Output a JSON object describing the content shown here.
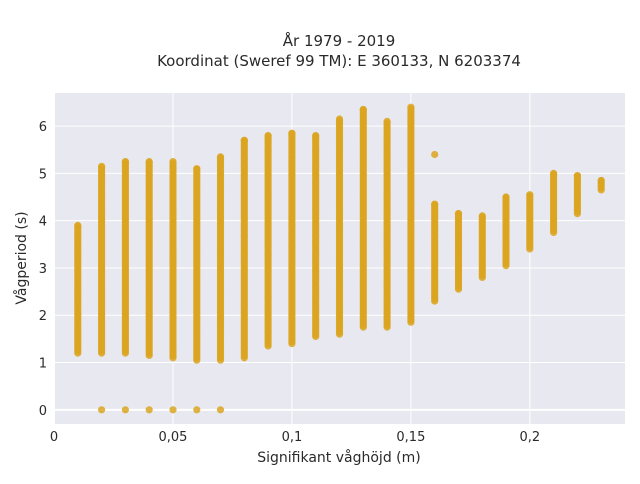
{
  "chart_data": {
    "type": "scatter",
    "title_line1": "År 1979 - 2019",
    "title_line2": "Koordinat (Sweref 99 TM): E 360133, N 6203374",
    "xlabel": "Signifikant våghöjd (m)",
    "ylabel": "Vågperiod (s)",
    "xlim": [
      0,
      0.24
    ],
    "ylim": [
      -0.3,
      6.7
    ],
    "xticks": [
      0,
      0.05,
      0.1,
      0.15,
      0.2
    ],
    "xtick_labels": [
      "0",
      "0,05",
      "0,1",
      "0,15",
      "0,2"
    ],
    "yticks": [
      0,
      1,
      2,
      3,
      4,
      5,
      6
    ],
    "ytick_labels": [
      "0",
      "1",
      "2",
      "3",
      "4",
      "5",
      "6"
    ],
    "grid": true,
    "colors": {
      "point": "#DAA520",
      "plot_bg": "#E8E8F0",
      "grid": "#ffffff"
    },
    "columns": [
      {
        "x": 0.01,
        "ymin": 1.2,
        "ymax": 3.9
      },
      {
        "x": 0.02,
        "ymin": 1.2,
        "ymax": 5.15,
        "extra": [
          0
        ]
      },
      {
        "x": 0.03,
        "ymin": 1.2,
        "ymax": 5.25,
        "extra": [
          0
        ]
      },
      {
        "x": 0.04,
        "ymin": 1.15,
        "ymax": 5.25,
        "extra": [
          0
        ]
      },
      {
        "x": 0.05,
        "ymin": 1.1,
        "ymax": 5.25,
        "extra": [
          0
        ]
      },
      {
        "x": 0.06,
        "ymin": 1.05,
        "ymax": 5.1,
        "extra": [
          0
        ]
      },
      {
        "x": 0.07,
        "ymin": 1.05,
        "ymax": 5.35,
        "extra": [
          0
        ]
      },
      {
        "x": 0.08,
        "ymin": 1.1,
        "ymax": 5.7
      },
      {
        "x": 0.09,
        "ymin": 1.35,
        "ymax": 5.8
      },
      {
        "x": 0.1,
        "ymin": 1.4,
        "ymax": 5.85
      },
      {
        "x": 0.11,
        "ymin": 1.55,
        "ymax": 5.8
      },
      {
        "x": 0.12,
        "ymin": 1.6,
        "ymax": 6.15
      },
      {
        "x": 0.13,
        "ymin": 1.75,
        "ymax": 6.35
      },
      {
        "x": 0.14,
        "ymin": 1.75,
        "ymax": 6.1
      },
      {
        "x": 0.15,
        "ymin": 1.85,
        "ymax": 6.4
      },
      {
        "x": 0.16,
        "ymin": 2.3,
        "ymax": 4.35,
        "extra": [
          5.4
        ]
      },
      {
        "x": 0.17,
        "ymin": 2.55,
        "ymax": 4.15
      },
      {
        "x": 0.18,
        "ymin": 2.8,
        "ymax": 4.1
      },
      {
        "x": 0.19,
        "ymin": 3.05,
        "ymax": 4.5
      },
      {
        "x": 0.2,
        "ymin": 3.4,
        "ymax": 4.55
      },
      {
        "x": 0.21,
        "ymin": 3.75,
        "ymax": 5.0
      },
      {
        "x": 0.22,
        "ymin": 4.15,
        "ymax": 4.95
      },
      {
        "x": 0.23,
        "ymin": 4.65,
        "ymax": 4.85
      }
    ]
  }
}
